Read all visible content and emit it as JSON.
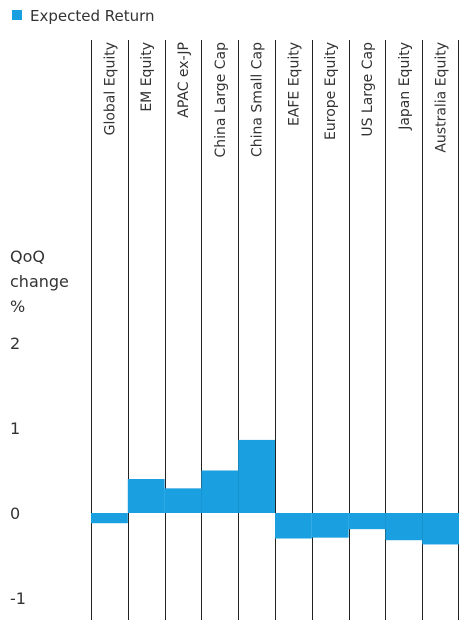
{
  "chart_data": {
    "type": "bar",
    "title": "",
    "xlabel": "",
    "ylabel": "QoQ change %",
    "ylabel_lines": [
      "QoQ",
      "change",
      "%"
    ],
    "ylim": [
      -1,
      2
    ],
    "yticks": [
      2,
      1,
      0,
      -1
    ],
    "yticklabels": [
      "2",
      "1",
      "0",
      "-1"
    ],
    "grid": false,
    "legend_position": "top-left",
    "categories": [
      "Global Equity",
      "EM Equity",
      "APAC ex-JP",
      "China Large Cap",
      "China Small Cap",
      "EAFE Equity",
      "Europe Equity",
      "US Large Cap",
      "Japan Equity",
      "Australia Equity"
    ],
    "series": [
      {
        "name": "Expected Return",
        "color": "#1aa0e0",
        "values": [
          -0.12,
          0.4,
          0.29,
          0.5,
          0.86,
          -0.3,
          -0.29,
          -0.19,
          -0.32,
          -0.37
        ]
      }
    ]
  }
}
